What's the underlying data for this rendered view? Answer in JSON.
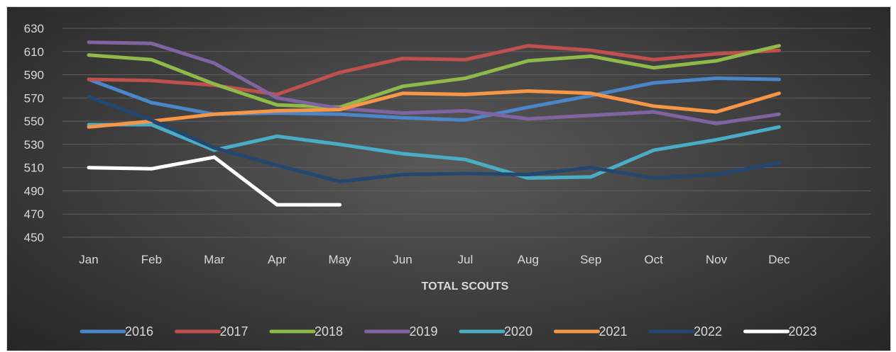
{
  "chart_data": {
    "type": "line",
    "title": "",
    "xlabel": "TOTAL SCOUTS",
    "ylabel": "",
    "ylim": [
      450,
      630
    ],
    "yticks": [
      450,
      470,
      490,
      510,
      530,
      550,
      570,
      590,
      610,
      630
    ],
    "categories": [
      "Jan",
      "Feb",
      "Mar",
      "Apr",
      "May",
      "Jun",
      "Jul",
      "Aug",
      "Sep",
      "Oct",
      "Nov",
      "Dec"
    ],
    "grid": true,
    "legend_position": "bottom",
    "series": [
      {
        "name": "2016",
        "color": "#4a86c8",
        "values": [
          586,
          566,
          556,
          557,
          556,
          553,
          551,
          562,
          572,
          583,
          587,
          586
        ]
      },
      {
        "name": "2017",
        "color": "#c0504d",
        "values": [
          586,
          585,
          581,
          573,
          592,
          604,
          603,
          615,
          611,
          603,
          608,
          611
        ]
      },
      {
        "name": "2018",
        "color": "#8fba4a",
        "values": [
          607,
          603,
          582,
          564,
          562,
          580,
          587,
          602,
          606,
          596,
          602,
          615
        ]
      },
      {
        "name": "2019",
        "color": "#8064a2",
        "values": [
          618,
          617,
          600,
          570,
          561,
          557,
          559,
          552,
          555,
          558,
          548,
          556
        ]
      },
      {
        "name": "2020",
        "color": "#4bacc6",
        "values": [
          547,
          547,
          525,
          537,
          530,
          522,
          517,
          501,
          502,
          525,
          534,
          545
        ]
      },
      {
        "name": "2021",
        "color": "#f79646",
        "values": [
          545,
          550,
          556,
          559,
          560,
          574,
          573,
          576,
          574,
          563,
          558,
          574
        ]
      },
      {
        "name": "2022",
        "color": "#23476e",
        "values": [
          571,
          551,
          527,
          512,
          498,
          504,
          505,
          504,
          510,
          501,
          504,
          514
        ]
      },
      {
        "name": "2023",
        "color": "#ffffff",
        "values": [
          510,
          509,
          519,
          478,
          478,
          null,
          null,
          null,
          null,
          null,
          null,
          null
        ]
      }
    ]
  }
}
